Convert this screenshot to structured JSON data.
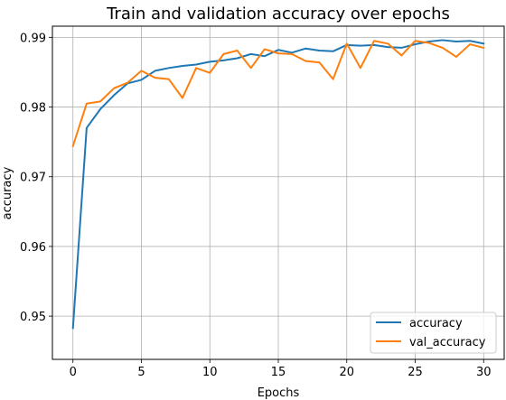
{
  "chart_data": {
    "type": "line",
    "title": "Train and validation accuracy over epochs",
    "xlabel": "Epochs",
    "ylabel": "accuracy",
    "xlim": [
      -1.5,
      31.5
    ],
    "ylim": [
      0.9438,
      0.9916
    ],
    "xticks": [
      0,
      5,
      10,
      15,
      20,
      25,
      30
    ],
    "xtick_labels": [
      "0",
      "5",
      "10",
      "15",
      "20",
      "25",
      "30"
    ],
    "yticks": [
      0.95,
      0.96,
      0.97,
      0.98,
      0.99
    ],
    "ytick_labels": [
      "0.95",
      "0.96",
      "0.97",
      "0.98",
      "0.99"
    ],
    "grid": true,
    "legend_position": "lower right",
    "x": [
      0,
      1,
      2,
      3,
      4,
      5,
      6,
      7,
      8,
      9,
      10,
      11,
      12,
      13,
      14,
      15,
      16,
      17,
      18,
      19,
      20,
      21,
      22,
      23,
      24,
      25,
      26,
      27,
      28,
      29,
      30
    ],
    "series": [
      {
        "name": "accuracy",
        "color": "#1f77b4",
        "values": [
          0.9483,
          0.977,
          0.9797,
          0.9817,
          0.9834,
          0.9839,
          0.9852,
          0.9856,
          0.9859,
          0.9861,
          0.9865,
          0.9867,
          0.987,
          0.9876,
          0.9873,
          0.9882,
          0.9878,
          0.9884,
          0.9881,
          0.988,
          0.9889,
          0.9888,
          0.9889,
          0.9886,
          0.9885,
          0.989,
          0.9894,
          0.9896,
          0.9894,
          0.9895,
          0.9891
        ]
      },
      {
        "name": "val_accuracy",
        "color": "#ff7f0e",
        "values": [
          0.9744,
          0.9805,
          0.9808,
          0.9827,
          0.9835,
          0.9852,
          0.9842,
          0.984,
          0.9813,
          0.9856,
          0.9849,
          0.9876,
          0.9881,
          0.9856,
          0.9883,
          0.9877,
          0.9876,
          0.9866,
          0.9864,
          0.984,
          0.9891,
          0.9856,
          0.9895,
          0.9891,
          0.9874,
          0.9895,
          0.9892,
          0.9885,
          0.9872,
          0.989,
          0.9885
        ]
      }
    ]
  }
}
